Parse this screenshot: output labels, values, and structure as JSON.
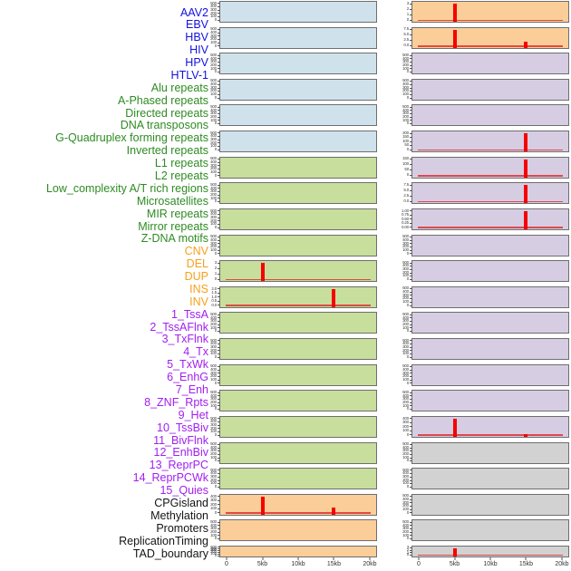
{
  "chart_data": {
    "type": "bar",
    "subtype": "small-multiples signal tracks, 2 panel columns x 22 rows, shared x axis",
    "x_axis": {
      "ticks": [
        "0",
        "5kb",
        "10kb",
        "15kb",
        "20kb"
      ],
      "range_kb": [
        0,
        20
      ]
    },
    "tracks_per_column": 22,
    "spike_color": "#f60000",
    "groups": {
      "virus": {
        "label_color": "#1212e0",
        "panel_color": "#cfe2ec"
      },
      "repeat": {
        "label_color": "#2e8b22",
        "panel_color": "#c8de9c"
      },
      "sv": {
        "label_color": "#f7a01b",
        "panel_color": "#fbce99"
      },
      "chromatin": {
        "label_color": "#a020f0",
        "panel_color": "#d6cde3"
      },
      "other": {
        "label_color": "#141414",
        "panel_color": "#d2d2d2"
      }
    },
    "tracks": [
      {
        "label": "AAV2",
        "group": "virus",
        "yticks": [
          "500",
          "400",
          "300",
          "200",
          "100",
          "0"
        ],
        "spikes": [],
        "baseline": false
      },
      {
        "label": "EBV",
        "group": "virus",
        "yticks": [
          "500",
          "400",
          "300",
          "200",
          "100",
          "0"
        ],
        "spikes": [],
        "baseline": false
      },
      {
        "label": "HBV",
        "group": "virus",
        "yticks": [
          "500",
          "400",
          "300",
          "200",
          "100",
          "0"
        ],
        "spikes": [],
        "baseline": false
      },
      {
        "label": "HIV",
        "group": "virus",
        "yticks": [
          "500",
          "400",
          "300",
          "200",
          "100",
          "0"
        ],
        "spikes": [],
        "baseline": false
      },
      {
        "label": "HPV",
        "group": "virus",
        "yticks": [
          "500",
          "400",
          "300",
          "200",
          "100",
          "0"
        ],
        "spikes": [],
        "baseline": false
      },
      {
        "label": "HTLV-1",
        "group": "virus",
        "yticks": [
          "500",
          "400",
          "300",
          "200",
          "100",
          "0"
        ],
        "spikes": [],
        "baseline": false
      },
      {
        "label": "Alu repeats",
        "group": "repeat",
        "yticks": [
          "500",
          "400",
          "300",
          "200",
          "100",
          "0"
        ],
        "spikes": [],
        "baseline": false
      },
      {
        "label": "A-Phased repeats",
        "group": "repeat",
        "yticks": [
          "500",
          "400",
          "300",
          "200",
          "100",
          "0"
        ],
        "spikes": [],
        "baseline": false
      },
      {
        "label": "Directed repeats",
        "group": "repeat",
        "yticks": [
          "500",
          "400",
          "300",
          "200",
          "100",
          "0"
        ],
        "spikes": [],
        "baseline": false
      },
      {
        "label": "DNA transposons",
        "group": "repeat",
        "yticks": [
          "500",
          "400",
          "300",
          "200",
          "100",
          "0"
        ],
        "spikes": [],
        "baseline": false
      },
      {
        "label": "G-Quadruplex forming repeats",
        "group": "repeat",
        "yticks": [
          "3",
          "2",
          "1",
          "0"
        ],
        "spikes": [
          {
            "x_kb": 5,
            "value": 3,
            "frac": 1
          }
        ],
        "baseline": true
      },
      {
        "label": "Inverted repeats",
        "group": "repeat",
        "yticks": [
          "2.0",
          "1.5",
          "1.0",
          "0.5",
          "0.0"
        ],
        "spikes": [
          {
            "x_kb": 15,
            "value": 2.0,
            "frac": 1
          }
        ],
        "baseline": true
      },
      {
        "label": "L1 repeats",
        "group": "repeat",
        "yticks": [
          "500",
          "400",
          "300",
          "200",
          "100",
          "0"
        ],
        "spikes": [],
        "baseline": false
      },
      {
        "label": "L2 repeats",
        "group": "repeat",
        "yticks": [
          "500",
          "400",
          "300",
          "200",
          "100",
          "0"
        ],
        "spikes": [],
        "baseline": false
      },
      {
        "label": "Low_complexity A/T rich regions",
        "group": "repeat",
        "yticks": [
          "500",
          "400",
          "300",
          "200",
          "100",
          "0"
        ],
        "spikes": [],
        "baseline": false
      },
      {
        "label": "Microsatellites",
        "group": "repeat",
        "yticks": [
          "500",
          "400",
          "300",
          "200",
          "100",
          "0"
        ],
        "spikes": [],
        "baseline": false
      },
      {
        "label": "MIR repeats",
        "group": "repeat",
        "yticks": [
          "500",
          "400",
          "300",
          "200",
          "100",
          "0"
        ],
        "spikes": [],
        "baseline": false
      },
      {
        "label": "Mirror repeats",
        "group": "repeat",
        "yticks": [
          "500",
          "400",
          "300",
          "200",
          "100",
          "0"
        ],
        "spikes": [],
        "baseline": false
      },
      {
        "label": "Z-DNA motifs",
        "group": "repeat",
        "yticks": [
          "500",
          "400",
          "300",
          "200",
          "100",
          "0"
        ],
        "spikes": [],
        "baseline": false
      },
      {
        "label": "CNV",
        "group": "sv",
        "yticks": [
          "400",
          "300",
          "200",
          "100",
          "0"
        ],
        "spikes": [
          {
            "x_kb": 5,
            "value": 430,
            "frac": 1
          },
          {
            "x_kb": 15,
            "value": 150,
            "frac": 0.36
          }
        ],
        "baseline": true
      },
      {
        "label": "DEL",
        "group": "sv",
        "yticks": [
          "500",
          "400",
          "300",
          "200",
          "100",
          "0"
        ],
        "spikes": [],
        "baseline": false
      },
      {
        "label": "DUP",
        "group": "sv",
        "yticks": [
          "500",
          "400",
          "300",
          "200",
          "100",
          "0"
        ],
        "spikes": [],
        "baseline": false
      },
      {
        "label": "INS",
        "group": "sv",
        "yticks": [
          "3",
          "2",
          "1",
          "0"
        ],
        "spikes": [
          {
            "x_kb": 5,
            "value": 3,
            "frac": 1
          }
        ],
        "baseline": true
      },
      {
        "label": "INV",
        "group": "sv",
        "yticks": [
          "7.5",
          "5.0",
          "2.5",
          "0.0"
        ],
        "spikes": [
          {
            "x_kb": 5,
            "value": 7.5,
            "frac": 1
          },
          {
            "x_kb": 15,
            "value": 2.5,
            "frac": 0.32
          }
        ],
        "baseline": true
      },
      {
        "label": "1_TssA",
        "group": "chromatin",
        "yticks": [
          "500",
          "400",
          "300",
          "200",
          "100",
          "0"
        ],
        "spikes": [],
        "baseline": false
      },
      {
        "label": "2_TssAFlnk",
        "group": "chromatin",
        "yticks": [
          "500",
          "400",
          "300",
          "200",
          "100",
          "0"
        ],
        "spikes": [],
        "baseline": false
      },
      {
        "label": "3_TxFlnk",
        "group": "chromatin",
        "yticks": [
          "500",
          "400",
          "300",
          "200",
          "100",
          "0"
        ],
        "spikes": [],
        "baseline": false
      },
      {
        "label": "4_Tx",
        "group": "chromatin",
        "yticks": [
          "200",
          "150",
          "100",
          "50",
          "0"
        ],
        "spikes": [
          {
            "x_kb": 15,
            "value": 200,
            "frac": 1
          }
        ],
        "baseline": true
      },
      {
        "label": "5_TxWk",
        "group": "chromatin",
        "yticks": [
          "150",
          "100",
          "50",
          "0"
        ],
        "spikes": [
          {
            "x_kb": 15,
            "value": 150,
            "frac": 1
          }
        ],
        "baseline": true
      },
      {
        "label": "6_EnhG",
        "group": "chromatin",
        "yticks": [
          "7.5",
          "5.0",
          "2.5",
          "0.0"
        ],
        "spikes": [
          {
            "x_kb": 15,
            "value": 7.5,
            "frac": 1
          }
        ],
        "baseline": true
      },
      {
        "label": "7_Enh",
        "group": "chromatin",
        "yticks": [
          "1.00",
          "0.75",
          "0.50",
          "0.25",
          "0.00"
        ],
        "spikes": [
          {
            "x_kb": 15,
            "value": 1.0,
            "frac": 1
          }
        ],
        "baseline": true
      },
      {
        "label": "8_ZNF_Rpts",
        "group": "chromatin",
        "yticks": [
          "500",
          "400",
          "300",
          "200",
          "100",
          "0"
        ],
        "spikes": [],
        "baseline": false
      },
      {
        "label": "9_Het",
        "group": "chromatin",
        "yticks": [
          "500",
          "400",
          "300",
          "200",
          "100",
          "0"
        ],
        "spikes": [],
        "baseline": false
      },
      {
        "label": "10_TssBiv",
        "group": "chromatin",
        "yticks": [
          "500",
          "400",
          "300",
          "200",
          "100",
          "0"
        ],
        "spikes": [],
        "baseline": false
      },
      {
        "label": "11_BivFlnk",
        "group": "chromatin",
        "yticks": [
          "500",
          "400",
          "300",
          "200",
          "100",
          "0"
        ],
        "spikes": [],
        "baseline": false
      },
      {
        "label": "12_EnhBiv",
        "group": "chromatin",
        "yticks": [
          "500",
          "400",
          "300",
          "200",
          "100",
          "0"
        ],
        "spikes": [],
        "baseline": false
      },
      {
        "label": "13_ReprPC",
        "group": "chromatin",
        "yticks": [
          "500",
          "400",
          "300",
          "200",
          "100",
          "0"
        ],
        "spikes": [],
        "baseline": false
      },
      {
        "label": "14_ReprPCWk",
        "group": "chromatin",
        "yticks": [
          "500",
          "400",
          "300",
          "200",
          "100",
          "0"
        ],
        "spikes": [],
        "baseline": false
      },
      {
        "label": "15_Quies",
        "group": "chromatin",
        "yticks": [
          "400",
          "300",
          "200",
          "100",
          "0"
        ],
        "spikes": [
          {
            "x_kb": 5,
            "value": 430,
            "frac": 1
          },
          {
            "x_kb": 15,
            "value": 50,
            "frac": 0.12
          }
        ],
        "baseline": true
      },
      {
        "label": "CPGisland",
        "group": "other",
        "yticks": [
          "500",
          "400",
          "300",
          "200",
          "100",
          "0"
        ],
        "spikes": [],
        "baseline": false
      },
      {
        "label": "Methylation",
        "group": "other",
        "yticks": [
          "500",
          "400",
          "300",
          "200",
          "100",
          "0"
        ],
        "spikes": [],
        "baseline": false
      },
      {
        "label": "Promoters",
        "group": "other",
        "yticks": [
          "500",
          "400",
          "300",
          "200",
          "100",
          "0"
        ],
        "spikes": [],
        "baseline": false
      },
      {
        "label": "ReplicationTiming",
        "group": "other",
        "yticks": [
          "500",
          "400",
          "300",
          "200",
          "100",
          "0"
        ],
        "spikes": [],
        "baseline": false
      },
      {
        "label": "TAD_boundary",
        "group": "other",
        "yticks": [
          "3",
          "2",
          "1",
          "0"
        ],
        "spikes": [
          {
            "x_kb": 5,
            "value": 3,
            "frac": 1
          }
        ],
        "baseline": true
      }
    ]
  }
}
